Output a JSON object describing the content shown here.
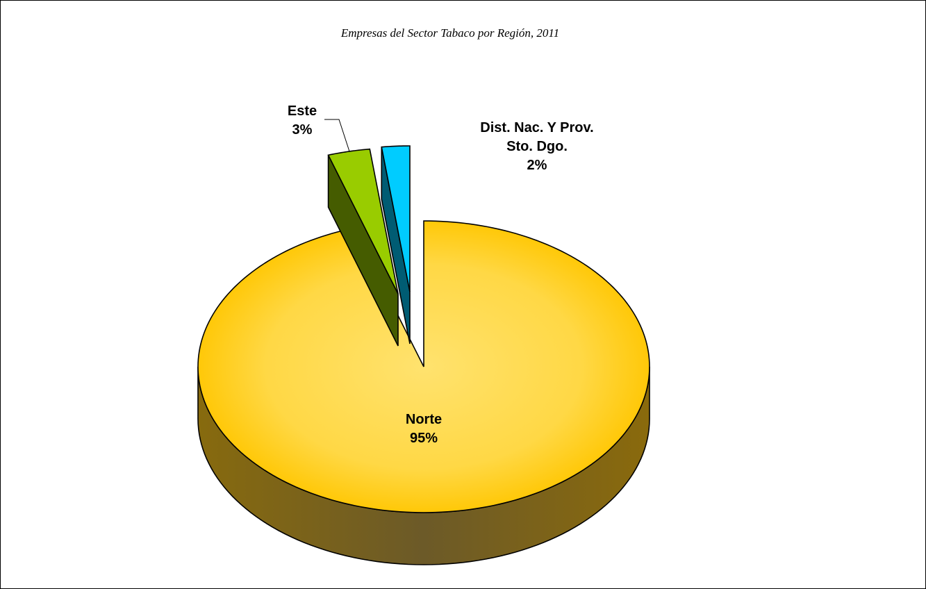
{
  "chart_data": {
    "type": "pie",
    "style": "3d-exploded",
    "title": "Empresas del Sector Tabaco por Región, 2011",
    "slices": [
      {
        "name": "Norte",
        "percent_label": "95%",
        "value": 95,
        "color": "#FFD21A"
      },
      {
        "name": "Este",
        "percent_label": "3%",
        "value": 3,
        "color": "#99CC00"
      },
      {
        "name": "Dist. Nac. Y Prov. Sto. Dgo.",
        "name_lines": [
          "Dist. Nac. Y Prov.",
          "Sto. Dgo."
        ],
        "percent_label": "2%",
        "value": 2,
        "color": "#00CCFF"
      }
    ]
  }
}
